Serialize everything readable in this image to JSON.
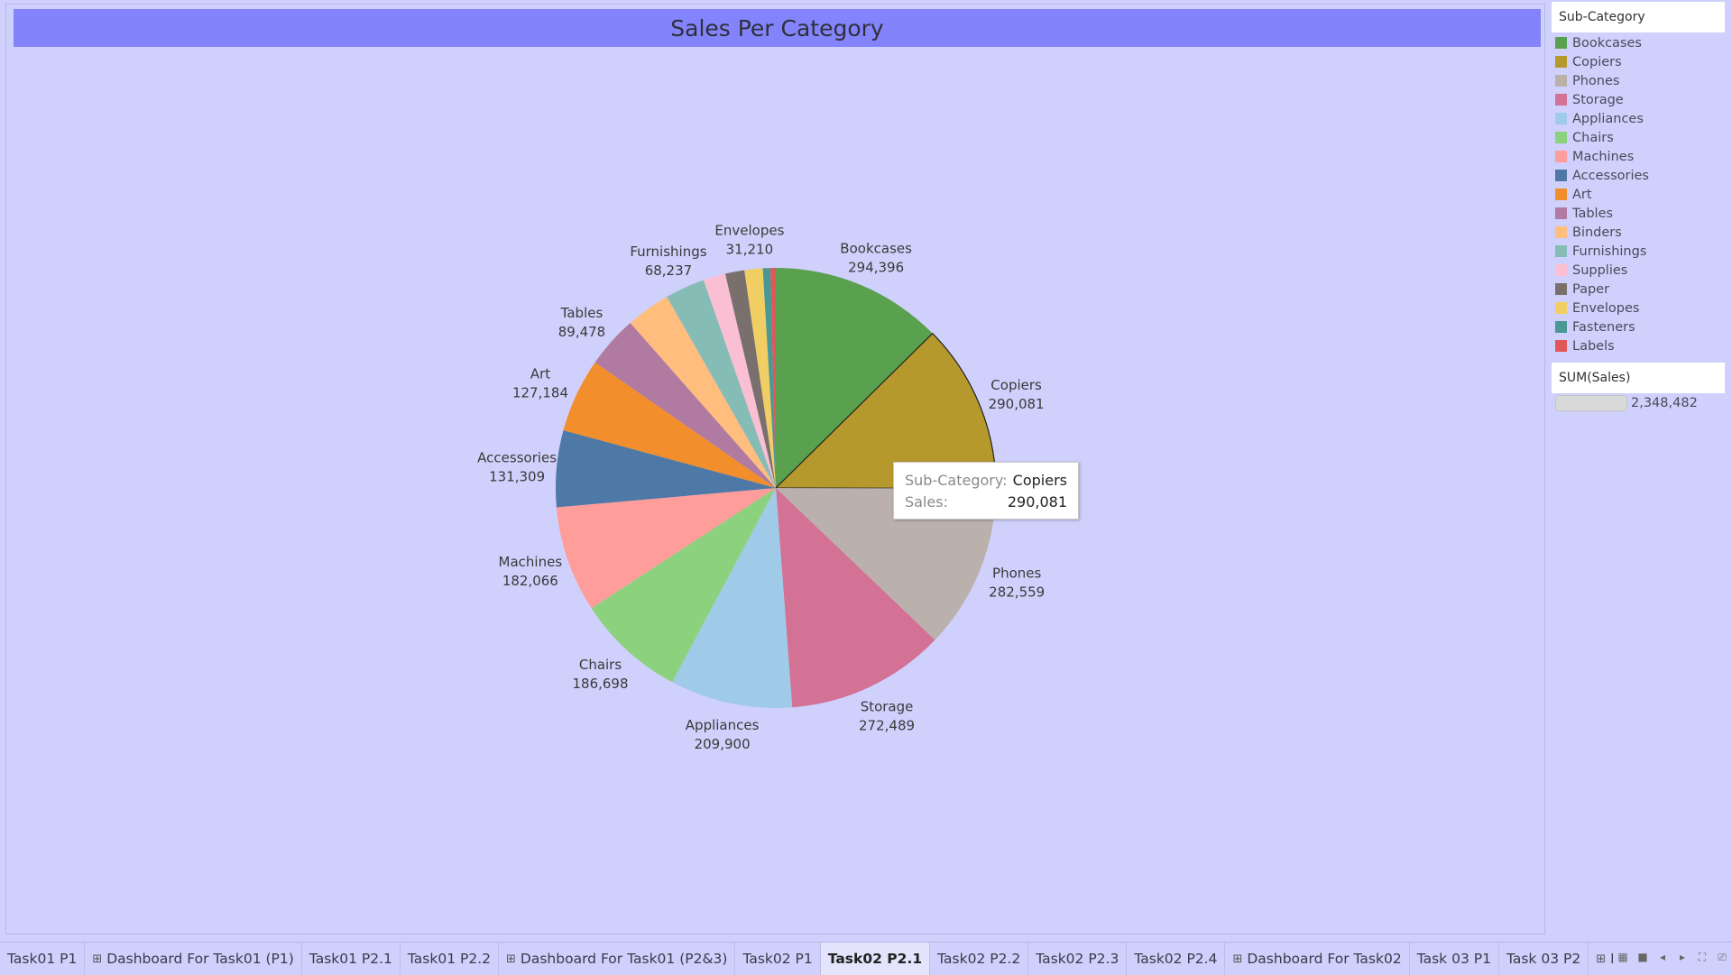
{
  "title": "Sales Per Category",
  "chart_data": {
    "type": "pie",
    "title": "Sales Per Category",
    "legend_title": "Sub-Category",
    "measure": "SUM(Sales)",
    "total": "2,348,482",
    "slices": [
      {
        "label": "Bookcases",
        "value": 294396,
        "value_label": "294,396",
        "color": "#59a14f",
        "show_label": true
      },
      {
        "label": "Copiers",
        "value": 290081,
        "value_label": "290,081",
        "color": "#b6992d",
        "show_label": true
      },
      {
        "label": "Phones",
        "value": 282559,
        "value_label": "282,559",
        "color": "#bab0ac",
        "show_label": true
      },
      {
        "label": "Storage",
        "value": 272489,
        "value_label": "272,489",
        "color": "#d37295",
        "show_label": true
      },
      {
        "label": "Appliances",
        "value": 209900,
        "value_label": "209,900",
        "color": "#a0cbe8",
        "show_label": true
      },
      {
        "label": "Chairs",
        "value": 186698,
        "value_label": "186,698",
        "color": "#8cd17d",
        "show_label": true
      },
      {
        "label": "Machines",
        "value": 182066,
        "value_label": "182,066",
        "color": "#ff9d9a",
        "show_label": true
      },
      {
        "label": "Accessories",
        "value": 131309,
        "value_label": "131,309",
        "color": "#4e79a7",
        "show_label": true
      },
      {
        "label": "Art",
        "value": 127184,
        "value_label": "127,184",
        "color": "#f28e2b",
        "show_label": true
      },
      {
        "label": "Tables",
        "value": 89478,
        "value_label": "89,478",
        "color": "#b07aa1",
        "show_label": true
      },
      {
        "label": "Binders",
        "value": 76000,
        "value_label": "",
        "color": "#ffbe7d",
        "show_label": false
      },
      {
        "label": "Furnishings",
        "value": 68237,
        "value_label": "68,237",
        "color": "#86bcb6",
        "show_label": true
      },
      {
        "label": "Supplies",
        "value": 38000,
        "value_label": "",
        "color": "#fabfd2",
        "show_label": false
      },
      {
        "label": "Paper",
        "value": 33000,
        "value_label": "",
        "color": "#79706e",
        "show_label": false
      },
      {
        "label": "Envelopes",
        "value": 31210,
        "value_label": "31,210",
        "color": "#f1ce63",
        "show_label": true
      },
      {
        "label": "Fasteners",
        "value": 13000,
        "value_label": "",
        "color": "#499894",
        "show_label": false
      },
      {
        "label": "Labels",
        "value": 9000,
        "value_label": "",
        "color": "#e15759",
        "show_label": false
      }
    ],
    "highlighted": "Copiers"
  },
  "tooltip": {
    "k1": "Sub-Category:",
    "v1": "Copiers",
    "k2": "Sales:",
    "v2": "290,081"
  },
  "legend": {
    "category_header": "Sub-Category",
    "sum_header": "SUM(Sales)",
    "sum_value": "2,348,482"
  },
  "tabs": [
    {
      "label": "Task01 P1",
      "dashboard": false,
      "active": false
    },
    {
      "label": "Dashboard For Task01 (P1)",
      "dashboard": true,
      "active": false
    },
    {
      "label": "Task01 P2.1",
      "dashboard": false,
      "active": false
    },
    {
      "label": "Task01 P2.2",
      "dashboard": false,
      "active": false
    },
    {
      "label": "Dashboard For Task01 (P2&3)",
      "dashboard": true,
      "active": false
    },
    {
      "label": "Task02 P1",
      "dashboard": false,
      "active": false
    },
    {
      "label": "Task02 P2.1",
      "dashboard": false,
      "active": true
    },
    {
      "label": "Task02 P2.2",
      "dashboard": false,
      "active": false
    },
    {
      "label": "Task02 P2.3",
      "dashboard": false,
      "active": false
    },
    {
      "label": "Task02 P2.4",
      "dashboard": false,
      "active": false
    },
    {
      "label": "Dashboard For Task02",
      "dashboard": true,
      "active": false
    },
    {
      "label": "Task 03 P1",
      "dashboard": false,
      "active": false
    },
    {
      "label": "Task 03 P2",
      "dashboard": false,
      "active": false
    },
    {
      "label": "Dashboboa",
      "dashboard": true,
      "active": false
    }
  ],
  "nav": {
    "grid_view": "▦",
    "stop": "■",
    "prev": "◂",
    "next": "▸",
    "fullscreen": "⛶",
    "present": "⎚"
  }
}
